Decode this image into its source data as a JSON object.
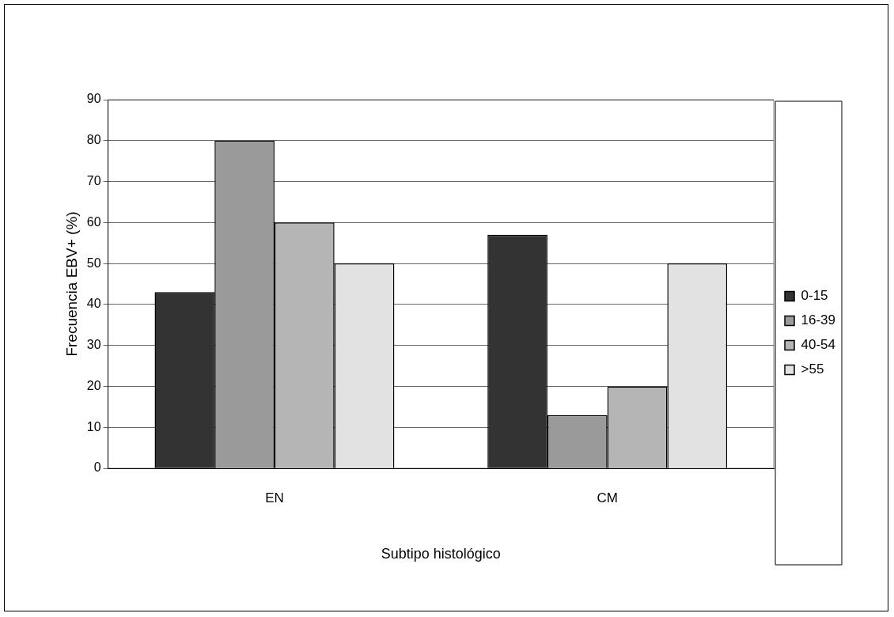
{
  "chart_data": {
    "type": "bar",
    "xlabel": "Subtipo histológico",
    "ylabel": "Frecuencia EBV+ (%)",
    "categories": [
      "EN",
      "CM"
    ],
    "series": [
      {
        "name": "0-15",
        "color": "#333333",
        "values": [
          43,
          57
        ]
      },
      {
        "name": "16-39",
        "color": "#9a9a9a",
        "values": [
          80,
          13
        ]
      },
      {
        "name": "40-54",
        "color": "#b5b5b5",
        "values": [
          60,
          20
        ]
      },
      {
        "name": ">55",
        "color": "#e2e2e2",
        "values": [
          50,
          50
        ]
      }
    ],
    "ylim": [
      0,
      90
    ],
    "yticks": [
      0,
      10,
      20,
      30,
      40,
      50,
      60,
      70,
      80,
      90
    ],
    "grid": "y",
    "legend": "right"
  }
}
